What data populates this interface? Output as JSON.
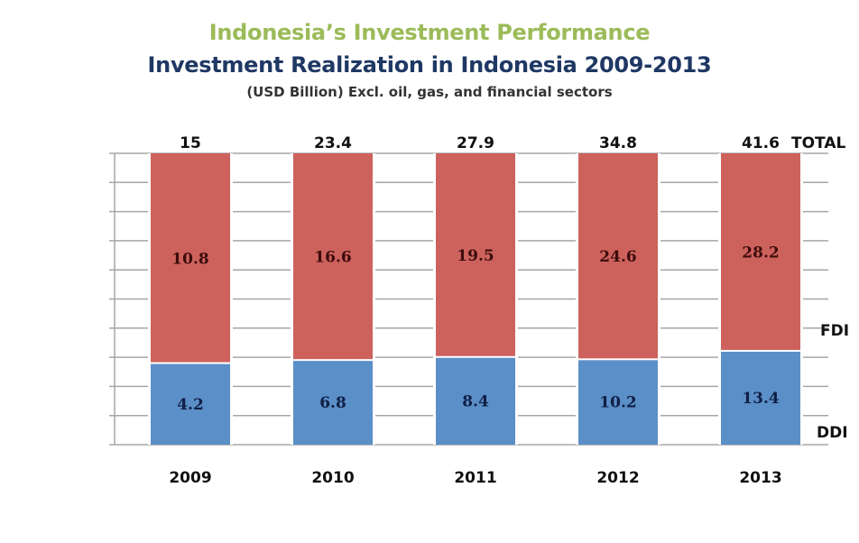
{
  "chart_data": {
    "type": "bar",
    "stacked": true,
    "normalized": true,
    "title": "Indonesia’s Investment Performance",
    "subtitle": "Investment Realization in Indonesia 2009-2013",
    "note": "(USD Billion) Excl. oil, gas, and financial sectors",
    "xlabel": "",
    "ylabel": "",
    "categories": [
      "2009",
      "2010",
      "2011",
      "2012",
      "2013"
    ],
    "series": [
      {
        "name": "DDI",
        "values": [
          4.2,
          6.8,
          8.4,
          10.2,
          13.4
        ],
        "color": "#5b8fc7"
      },
      {
        "name": "FDI",
        "values": [
          10.8,
          16.6,
          19.5,
          24.6,
          28.2
        ],
        "color": "#cd625d"
      }
    ],
    "totals": [
      15,
      23.4,
      27.9,
      34.8,
      41.6
    ],
    "totals_label": "TOTAL",
    "grid": true,
    "gridline_count": 10,
    "legend": "right"
  }
}
